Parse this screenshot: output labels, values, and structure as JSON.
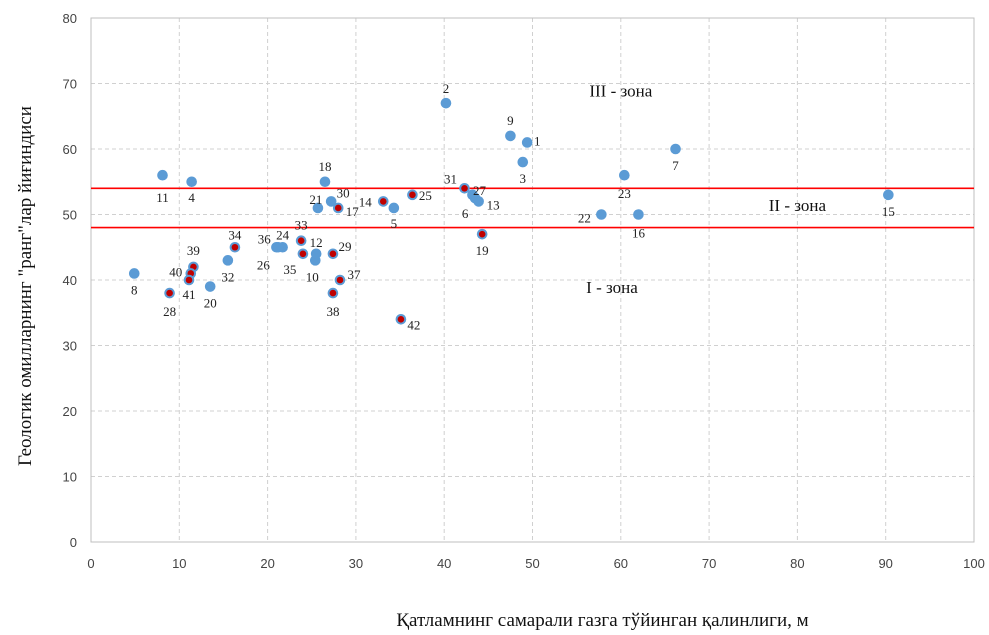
{
  "chart_data": {
    "type": "scatter",
    "title": "",
    "xlabel": "Қатламнинг самарали газга тўйинган қалинлиги,  м",
    "ylabel": "Геологик омилларнинг \"ранг\"лар йиғиндиси",
    "xlim": [
      0,
      100
    ],
    "ylim": [
      0,
      80
    ],
    "xticks": [
      0,
      10,
      20,
      30,
      40,
      50,
      60,
      70,
      80,
      90,
      100
    ],
    "yticks": [
      0,
      10,
      20,
      30,
      40,
      50,
      60,
      70,
      80
    ],
    "grid": true,
    "colors": {
      "point": "#5b9bd5",
      "highlight": "#c00000",
      "zone_line": "#ff0000",
      "grid": "#d0d0d0"
    },
    "zone_lines": [
      48,
      54
    ],
    "zone_labels": [
      {
        "text": "III - зона",
        "x": 60,
        "y": 68
      },
      {
        "text": "II - зона",
        "x": 80,
        "y": 50.5
      },
      {
        "text": "I - зона",
        "x": 59,
        "y": 38
      }
    ],
    "points": [
      {
        "label": "1",
        "x": 49.4,
        "y": 61,
        "red": false
      },
      {
        "label": "2",
        "x": 40.2,
        "y": 67,
        "red": false
      },
      {
        "label": "3",
        "x": 48.9,
        "y": 58,
        "red": false
      },
      {
        "label": "4",
        "x": 11.4,
        "y": 55,
        "red": false
      },
      {
        "label": "5",
        "x": 34.3,
        "y": 51,
        "red": false
      },
      {
        "label": "6",
        "x": 43.5,
        "y": 52.5,
        "red": false
      },
      {
        "label": "7",
        "x": 66.2,
        "y": 60,
        "red": false
      },
      {
        "label": "8",
        "x": 4.9,
        "y": 41,
        "red": false
      },
      {
        "label": "9",
        "x": 47.5,
        "y": 62,
        "red": false
      },
      {
        "label": "10",
        "x": 25.4,
        "y": 43,
        "red": false
      },
      {
        "label": "11",
        "x": 8.1,
        "y": 56,
        "red": false
      },
      {
        "label": "12",
        "x": 25.5,
        "y": 44,
        "red": false
      },
      {
        "label": "13",
        "x": 43.9,
        "y": 52,
        "red": false
      },
      {
        "label": "14",
        "x": 33.1,
        "y": 52,
        "red": true
      },
      {
        "label": "15",
        "x": 90.3,
        "y": 53,
        "red": false
      },
      {
        "label": "16",
        "x": 62.0,
        "y": 50,
        "red": false
      },
      {
        "label": "17",
        "x": 28.0,
        "y": 51,
        "red": true
      },
      {
        "label": "18",
        "x": 26.5,
        "y": 55,
        "red": false
      },
      {
        "label": "19",
        "x": 44.3,
        "y": 47,
        "red": true
      },
      {
        "label": "20",
        "x": 13.5,
        "y": 39,
        "red": false
      },
      {
        "label": "21",
        "x": 25.7,
        "y": 51,
        "red": false
      },
      {
        "label": "22",
        "x": 57.8,
        "y": 50,
        "red": false
      },
      {
        "label": "23",
        "x": 60.4,
        "y": 56,
        "red": false
      },
      {
        "label": "24",
        "x": 21.7,
        "y": 45,
        "red": false
      },
      {
        "label": "25",
        "x": 36.4,
        "y": 53,
        "red": true
      },
      {
        "label": "26",
        "x": 21.0,
        "y": 45,
        "red": true
      },
      {
        "label": "27",
        "x": 43.2,
        "y": 53,
        "red": false
      },
      {
        "label": "28",
        "x": 8.9,
        "y": 38,
        "red": true
      },
      {
        "label": "29",
        "x": 27.4,
        "y": 44,
        "red": true
      },
      {
        "label": "30",
        "x": 27.2,
        "y": 52,
        "red": false
      },
      {
        "label": "31",
        "x": 42.3,
        "y": 54,
        "red": true
      },
      {
        "label": "32",
        "x": 15.5,
        "y": 43,
        "red": false
      },
      {
        "label": "33",
        "x": 23.8,
        "y": 46,
        "red": true
      },
      {
        "label": "34",
        "x": 16.3,
        "y": 45,
        "red": true
      },
      {
        "label": "35",
        "x": 24.0,
        "y": 44,
        "red": true
      },
      {
        "label": "36",
        "x": 21.2,
        "y": 45,
        "red": false
      },
      {
        "label": "37",
        "x": 28.2,
        "y": 40,
        "red": true
      },
      {
        "label": "38",
        "x": 27.4,
        "y": 38,
        "red": true
      },
      {
        "label": "39",
        "x": 11.6,
        "y": 42,
        "red": true
      },
      {
        "label": "40",
        "x": 11.3,
        "y": 41,
        "red": true
      },
      {
        "label": "41",
        "x": 11.1,
        "y": 40,
        "red": true
      },
      {
        "label": "42",
        "x": 35.1,
        "y": 34,
        "red": true
      }
    ]
  }
}
